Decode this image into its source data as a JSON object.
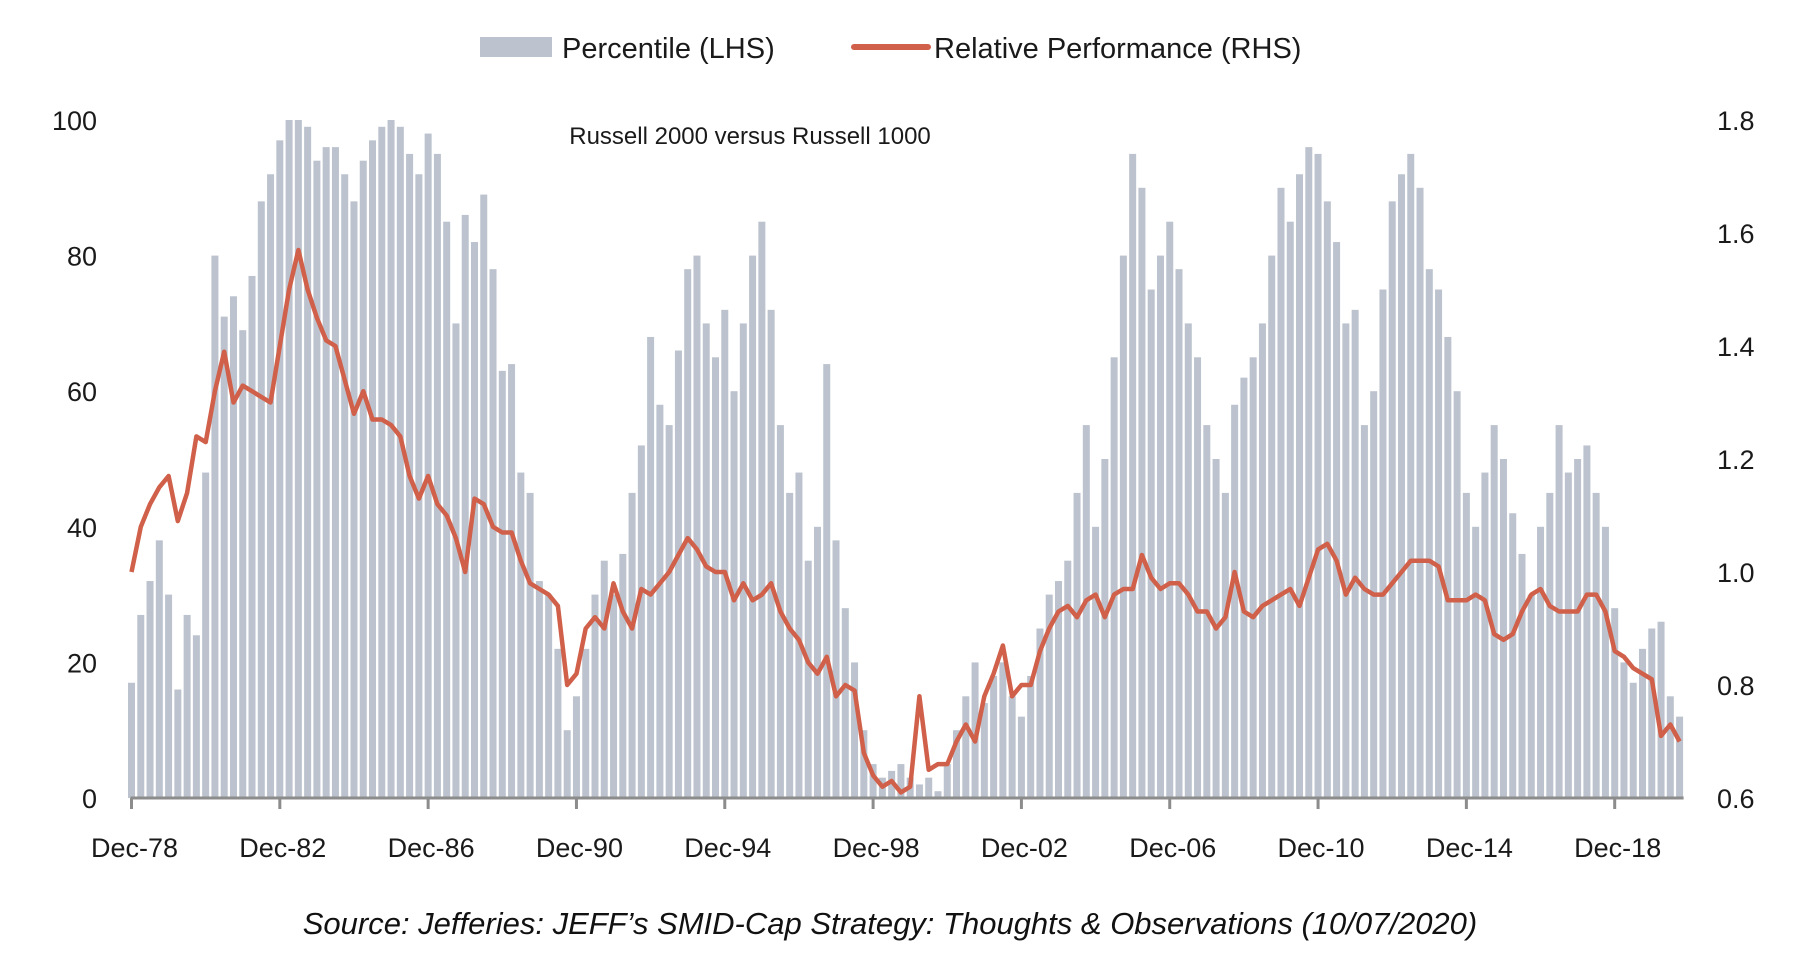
{
  "chart_data": {
    "type": "bar+line",
    "title": "Russell 2000 versus Russell 1000",
    "legend": {
      "placement": "top-center",
      "entries": [
        {
          "label": "Percentile (LHS)",
          "type": "bar",
          "color": "#bcc3ce"
        },
        {
          "label": "Relative Performance (RHS)",
          "type": "line",
          "color": "#d0604a"
        }
      ]
    },
    "x_axis": {
      "type": "date",
      "range": [
        "1978-12",
        "2020-09"
      ],
      "tick_labels": [
        "Dec-78",
        "Dec-82",
        "Dec-86",
        "Dec-90",
        "Dec-94",
        "Dec-98",
        "Dec-02",
        "Dec-06",
        "Dec-10",
        "Dec-14",
        "Dec-18"
      ],
      "tick_dates": [
        "1978-12",
        "1982-12",
        "1986-12",
        "1990-12",
        "1994-12",
        "1998-12",
        "2002-12",
        "2006-12",
        "2010-12",
        "2014-12",
        "2018-12"
      ]
    },
    "y_axis_left": {
      "range": [
        0,
        100
      ],
      "ticks": [
        0,
        20,
        40,
        60,
        80,
        100
      ],
      "tick_labels": [
        "0",
        "20",
        "40",
        "60",
        "80",
        "100"
      ]
    },
    "y_axis_right": {
      "range": [
        0.6,
        1.8
      ],
      "ticks": [
        0.6,
        0.8,
        1.0,
        1.2,
        1.4,
        1.6,
        1.8
      ],
      "tick_labels": [
        "0.6",
        "0.8",
        "1.0",
        "1.2",
        "1.4",
        "1.6",
        "1.8"
      ]
    },
    "grid": false,
    "x": [
      "1978-12",
      "1979-03",
      "1979-06",
      "1979-09",
      "1979-12",
      "1980-03",
      "1980-06",
      "1980-09",
      "1980-12",
      "1981-03",
      "1981-06",
      "1981-09",
      "1981-12",
      "1982-03",
      "1982-06",
      "1982-09",
      "1982-12",
      "1983-03",
      "1983-06",
      "1983-09",
      "1983-12",
      "1984-03",
      "1984-06",
      "1984-09",
      "1984-12",
      "1985-03",
      "1985-06",
      "1985-09",
      "1985-12",
      "1986-03",
      "1986-06",
      "1986-09",
      "1986-12",
      "1987-03",
      "1987-06",
      "1987-09",
      "1987-12",
      "1988-03",
      "1988-06",
      "1988-09",
      "1988-12",
      "1989-03",
      "1989-06",
      "1989-09",
      "1989-12",
      "1990-03",
      "1990-06",
      "1990-09",
      "1990-12",
      "1991-03",
      "1991-06",
      "1991-09",
      "1991-12",
      "1992-03",
      "1992-06",
      "1992-09",
      "1992-12",
      "1993-03",
      "1993-06",
      "1993-09",
      "1993-12",
      "1994-03",
      "1994-06",
      "1994-09",
      "1994-12",
      "1995-03",
      "1995-06",
      "1995-09",
      "1995-12",
      "1996-03",
      "1996-06",
      "1996-09",
      "1996-12",
      "1997-03",
      "1997-06",
      "1997-09",
      "1997-12",
      "1998-03",
      "1998-06",
      "1998-09",
      "1998-12",
      "1999-03",
      "1999-06",
      "1999-09",
      "1999-12",
      "2000-03",
      "2000-06",
      "2000-09",
      "2000-12",
      "2001-03",
      "2001-06",
      "2001-09",
      "2001-12",
      "2002-03",
      "2002-06",
      "2002-09",
      "2002-12",
      "2003-03",
      "2003-06",
      "2003-09",
      "2003-12",
      "2004-03",
      "2004-06",
      "2004-09",
      "2004-12",
      "2005-03",
      "2005-06",
      "2005-09",
      "2005-12",
      "2006-03",
      "2006-06",
      "2006-09",
      "2006-12",
      "2007-03",
      "2007-06",
      "2007-09",
      "2007-12",
      "2008-03",
      "2008-06",
      "2008-09",
      "2008-12",
      "2009-03",
      "2009-06",
      "2009-09",
      "2009-12",
      "2010-03",
      "2010-06",
      "2010-09",
      "2010-12",
      "2011-03",
      "2011-06",
      "2011-09",
      "2011-12",
      "2012-03",
      "2012-06",
      "2012-09",
      "2012-12",
      "2013-03",
      "2013-06",
      "2013-09",
      "2013-12",
      "2014-03",
      "2014-06",
      "2014-09",
      "2014-12",
      "2015-03",
      "2015-06",
      "2015-09",
      "2015-12",
      "2016-03",
      "2016-06",
      "2016-09",
      "2016-12",
      "2017-03",
      "2017-06",
      "2017-09",
      "2017-12",
      "2018-03",
      "2018-06",
      "2018-09",
      "2018-12",
      "2019-03",
      "2019-06",
      "2019-09",
      "2019-12",
      "2020-03",
      "2020-06",
      "2020-09"
    ],
    "series": [
      {
        "name": "Percentile (LHS)",
        "type": "bar",
        "axis": "left",
        "values": [
          17,
          27,
          32,
          38,
          30,
          16,
          27,
          24,
          48,
          80,
          71,
          74,
          69,
          77,
          88,
          92,
          97,
          100,
          100,
          99,
          94,
          96,
          96,
          92,
          88,
          94,
          97,
          99,
          100,
          99,
          95,
          92,
          98,
          95,
          85,
          70,
          86,
          82,
          89,
          78,
          63,
          64,
          48,
          45,
          32,
          30,
          22,
          10,
          15,
          22,
          30,
          35,
          30,
          36,
          45,
          52,
          68,
          58,
          55,
          66,
          78,
          80,
          70,
          65,
          72,
          60,
          70,
          80,
          85,
          72,
          55,
          45,
          48,
          35,
          40,
          64,
          38,
          28,
          20,
          10,
          5,
          3,
          4,
          5,
          3,
          2,
          3,
          1,
          5,
          10,
          15,
          20,
          14,
          18,
          20,
          15,
          12,
          18,
          25,
          30,
          32,
          35,
          45,
          55,
          40,
          50,
          65,
          80,
          95,
          90,
          75,
          80,
          85,
          78,
          70,
          65,
          55,
          50,
          45,
          58,
          62,
          65,
          70,
          80,
          90,
          85,
          92,
          96,
          95,
          88,
          82,
          70,
          72,
          55,
          60,
          75,
          88,
          92,
          95,
          90,
          78,
          75,
          68,
          60,
          45,
          40,
          48,
          55,
          50,
          42,
          36,
          30,
          40,
          45,
          55,
          48,
          50,
          52,
          45,
          40,
          28,
          20,
          17,
          22,
          25,
          26,
          15,
          12
        ]
      },
      {
        "name": "Relative Performance (RHS)",
        "type": "line",
        "axis": "right",
        "values": [
          1.0,
          1.08,
          1.12,
          1.15,
          1.17,
          1.09,
          1.14,
          1.24,
          1.23,
          1.32,
          1.39,
          1.3,
          1.33,
          1.32,
          1.31,
          1.3,
          1.4,
          1.5,
          1.57,
          1.5,
          1.45,
          1.41,
          1.4,
          1.34,
          1.28,
          1.32,
          1.27,
          1.27,
          1.26,
          1.24,
          1.17,
          1.13,
          1.17,
          1.12,
          1.1,
          1.06,
          1.0,
          1.13,
          1.12,
          1.08,
          1.07,
          1.07,
          1.02,
          0.98,
          0.97,
          0.96,
          0.94,
          0.8,
          0.82,
          0.9,
          0.92,
          0.9,
          0.98,
          0.93,
          0.9,
          0.97,
          0.96,
          0.98,
          1.0,
          1.03,
          1.06,
          1.04,
          1.01,
          1.0,
          1.0,
          0.95,
          0.98,
          0.95,
          0.96,
          0.98,
          0.93,
          0.9,
          0.88,
          0.84,
          0.82,
          0.85,
          0.78,
          0.8,
          0.79,
          0.68,
          0.64,
          0.62,
          0.63,
          0.61,
          0.62,
          0.78,
          0.65,
          0.66,
          0.66,
          0.7,
          0.73,
          0.7,
          0.78,
          0.82,
          0.87,
          0.78,
          0.8,
          0.8,
          0.86,
          0.9,
          0.93,
          0.94,
          0.92,
          0.95,
          0.96,
          0.92,
          0.96,
          0.97,
          0.97,
          1.03,
          0.99,
          0.97,
          0.98,
          0.98,
          0.96,
          0.93,
          0.93,
          0.9,
          0.92,
          1.0,
          0.93,
          0.92,
          0.94,
          0.95,
          0.96,
          0.97,
          0.94,
          0.99,
          1.04,
          1.05,
          1.02,
          0.96,
          0.99,
          0.97,
          0.96,
          0.96,
          0.98,
          1.0,
          1.02,
          1.02,
          1.02,
          1.01,
          0.95,
          0.95,
          0.95,
          0.96,
          0.95,
          0.89,
          0.88,
          0.89,
          0.93,
          0.96,
          0.97,
          0.94,
          0.93,
          0.93,
          0.93,
          0.96,
          0.96,
          0.93,
          0.86,
          0.85,
          0.83,
          0.82,
          0.81,
          0.71,
          0.73,
          0.7
        ]
      }
    ],
    "source": "Source: Jefferies: JEFF’s SMID-Cap Strategy: Thoughts & Observations (10/07/2020)"
  }
}
